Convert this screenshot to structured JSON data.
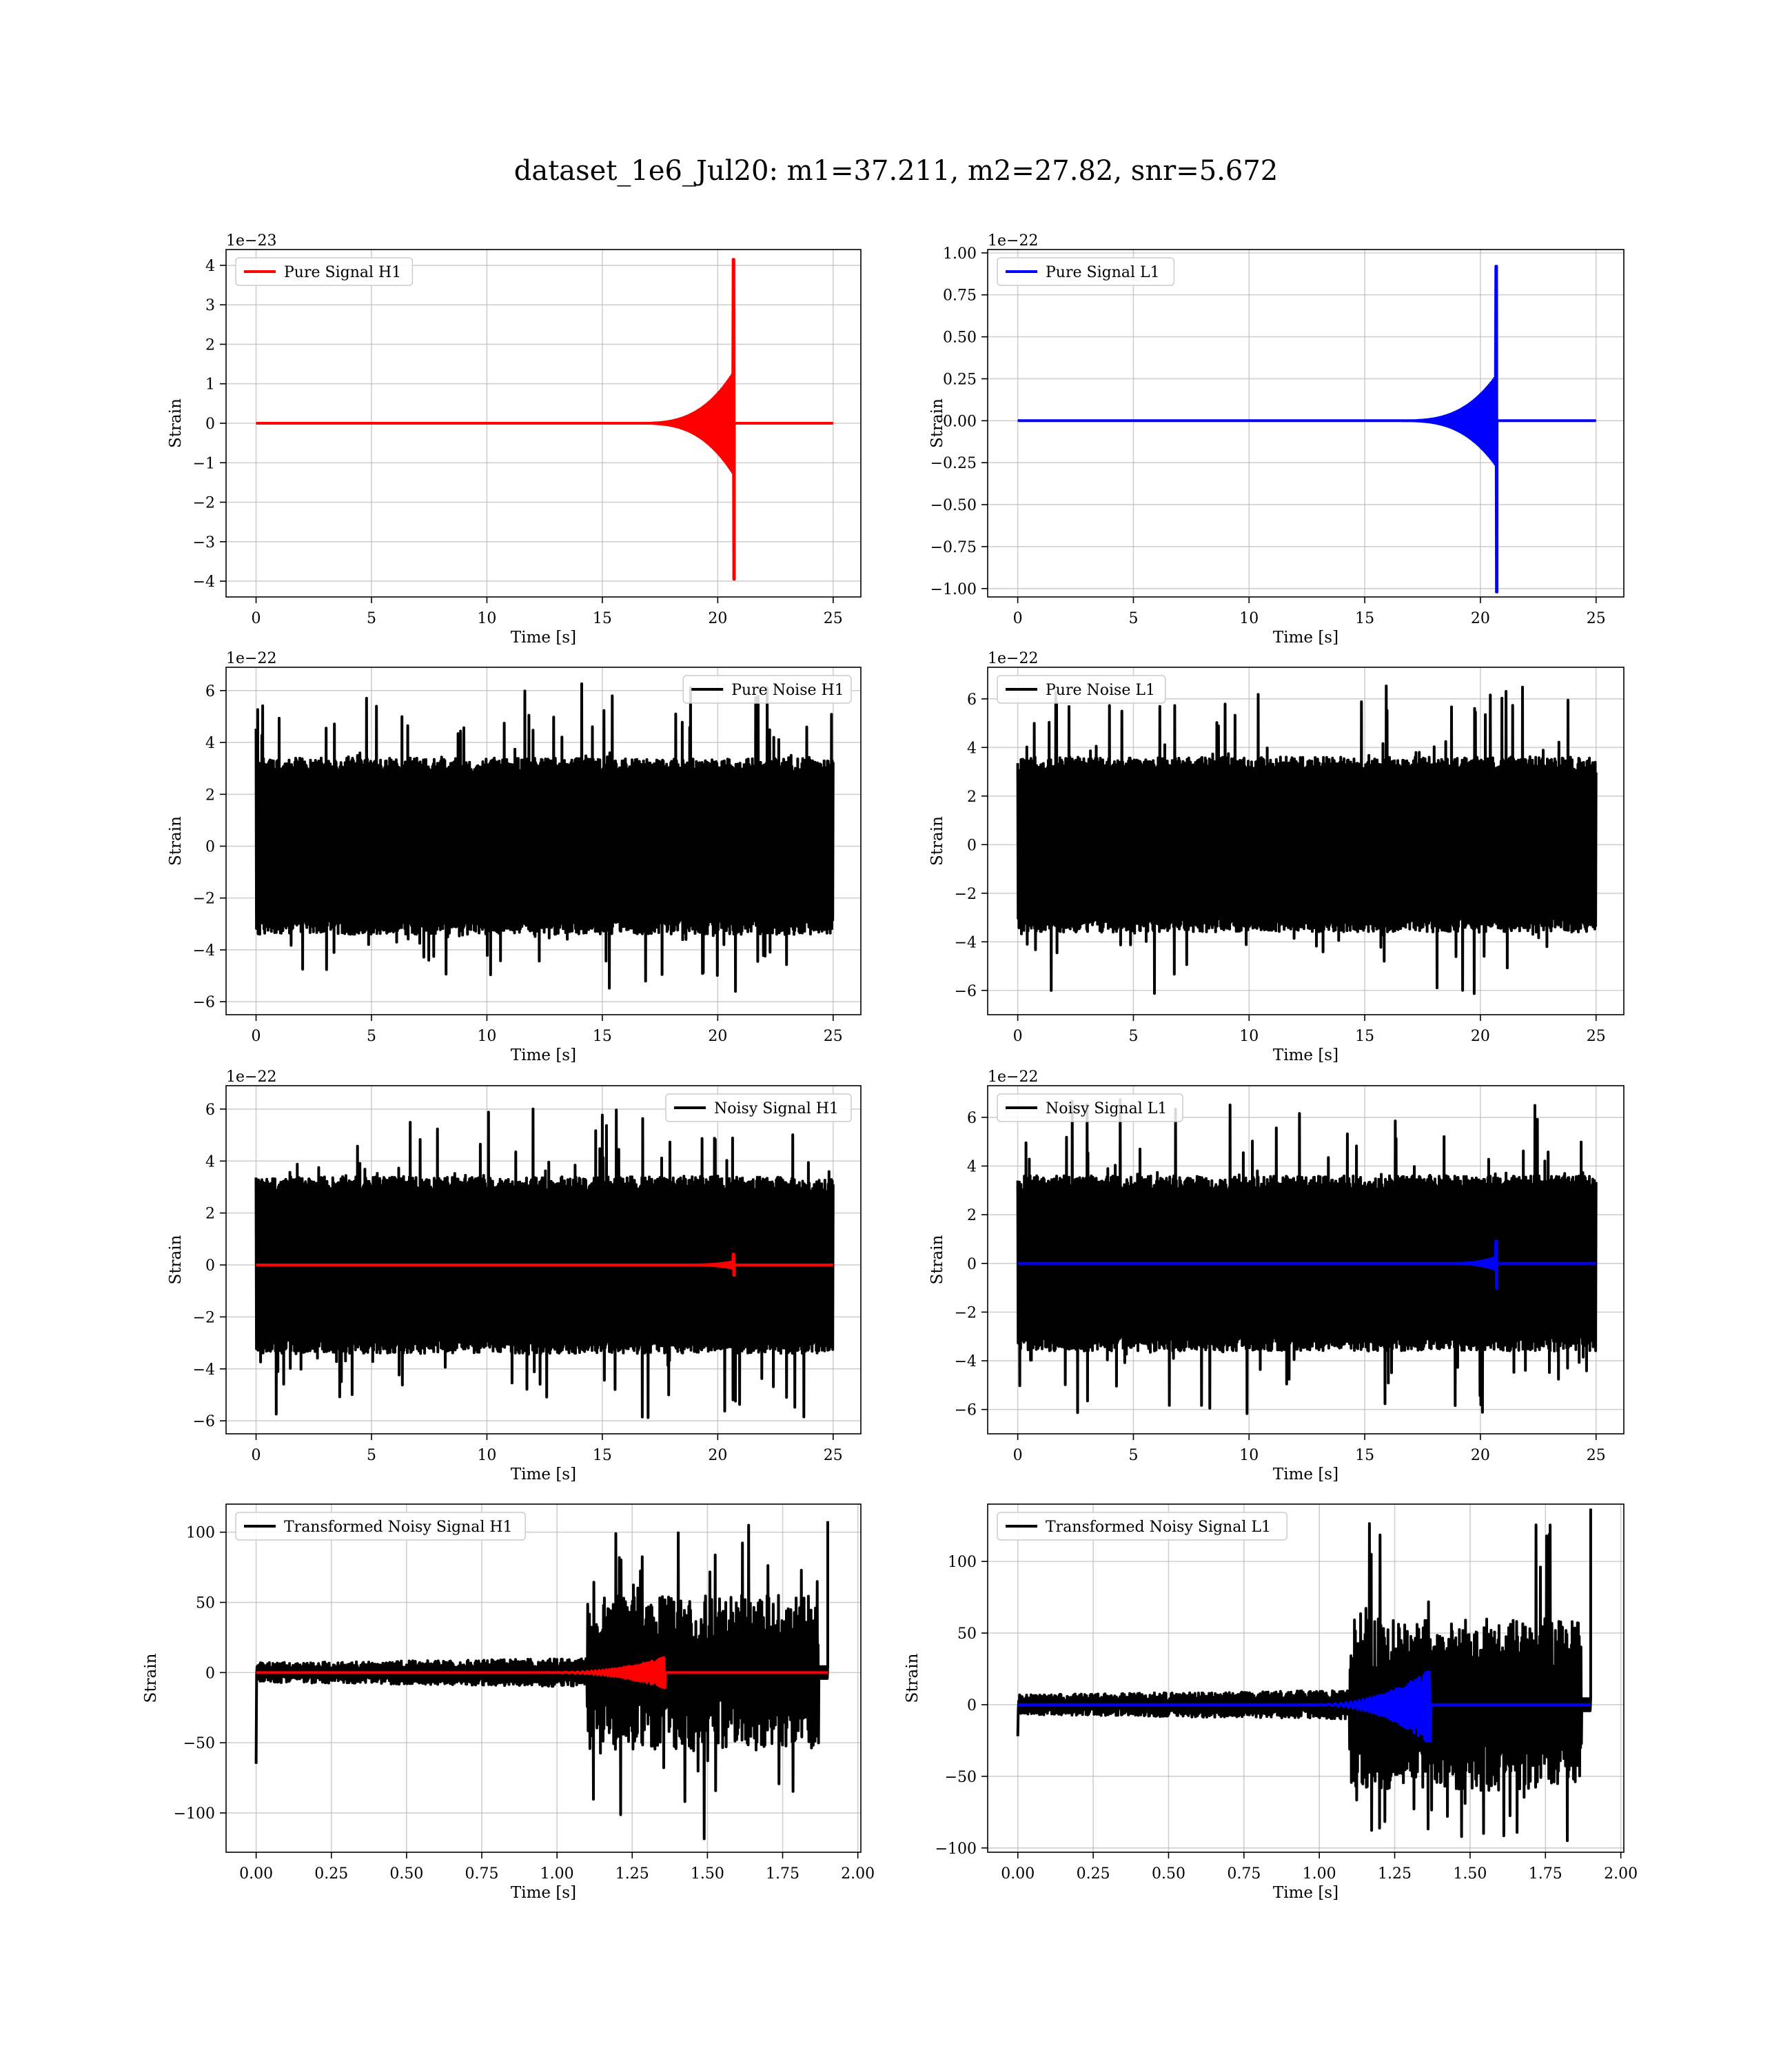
{
  "figure": {
    "title": "dataset_1e6_Jul20: m1=37.211, m2=27.82, snr=5.672"
  },
  "chart_data": [
    {
      "id": "pure-signal-h1",
      "type": "line",
      "legend": "upper left",
      "offset_label": "1e−23",
      "xlabel": "Time [s]",
      "ylabel": "Strain",
      "xlim": [
        -1.3,
        26.2
      ],
      "ylim": [
        -4.4,
        4.4
      ],
      "xticks": [
        0,
        5,
        10,
        15,
        20,
        25
      ],
      "xtick_labels": [
        "0",
        "5",
        "10",
        "15",
        "20",
        "25"
      ],
      "yticks": [
        -4,
        -3,
        -2,
        -1,
        0,
        1,
        2,
        3,
        4
      ],
      "ytick_labels": [
        "−4",
        "−3",
        "−2",
        "−1",
        "0",
        "1",
        "2",
        "3",
        "4"
      ],
      "grid": true,
      "series": [
        {
          "name": "Pure Signal H1",
          "color": "#ff0000",
          "kind": "chirp",
          "x_start": 0,
          "x_end": 25,
          "merger_x": 20.7,
          "peak_pos": 4.15,
          "peak_neg": -3.95,
          "inspiral_amp": 1.3,
          "onset_x": 16.5
        }
      ]
    },
    {
      "id": "pure-signal-l1",
      "type": "line",
      "legend": "upper left",
      "offset_label": "1e−22",
      "xlabel": "Time [s]",
      "ylabel": "Strain",
      "xlim": [
        -1.3,
        26.2
      ],
      "ylim": [
        -1.05,
        1.02
      ],
      "xticks": [
        0,
        5,
        10,
        15,
        20,
        25
      ],
      "xtick_labels": [
        "0",
        "5",
        "10",
        "15",
        "20",
        "25"
      ],
      "yticks": [
        -1.0,
        -0.75,
        -0.5,
        -0.25,
        0.0,
        0.25,
        0.5,
        0.75,
        1.0
      ],
      "ytick_labels": [
        "−1.00",
        "−0.75",
        "−0.50",
        "−0.25",
        "0.00",
        "0.25",
        "0.50",
        "0.75",
        "1.00"
      ],
      "grid": true,
      "series": [
        {
          "name": "Pure Signal L1",
          "color": "#0000ff",
          "kind": "chirp",
          "x_start": 0,
          "x_end": 25,
          "merger_x": 20.7,
          "peak_pos": 0.92,
          "peak_neg": -1.02,
          "inspiral_amp": 0.27,
          "onset_x": 16.5
        }
      ]
    },
    {
      "id": "pure-noise-h1",
      "type": "line",
      "legend": "upper right",
      "offset_label": "1e−22",
      "xlabel": "Time [s]",
      "ylabel": "Strain",
      "xlim": [
        -1.3,
        26.2
      ],
      "ylim": [
        -6.5,
        6.9
      ],
      "xticks": [
        0,
        5,
        10,
        15,
        20,
        25
      ],
      "xtick_labels": [
        "0",
        "5",
        "10",
        "15",
        "20",
        "25"
      ],
      "yticks": [
        -6,
        -4,
        -2,
        0,
        2,
        4,
        6
      ],
      "ytick_labels": [
        "−6",
        "−4",
        "−2",
        "0",
        "2",
        "4",
        "6"
      ],
      "grid": true,
      "series": [
        {
          "name": "Pure Noise H1",
          "color": "#000000",
          "kind": "noise",
          "x_start": 0,
          "x_end": 25,
          "band": 3.4,
          "spike_max": 6.4,
          "spike_min": -5.9
        }
      ]
    },
    {
      "id": "pure-noise-l1",
      "type": "line",
      "legend": "upper left",
      "offset_label": "1e−22",
      "xlabel": "Time [s]",
      "ylabel": "Strain",
      "xlim": [
        -1.3,
        26.2
      ],
      "ylim": [
        -7.0,
        7.3
      ],
      "xticks": [
        0,
        5,
        10,
        15,
        20,
        25
      ],
      "xtick_labels": [
        "0",
        "5",
        "10",
        "15",
        "20",
        "25"
      ],
      "yticks": [
        -6,
        -4,
        -2,
        0,
        2,
        4,
        6
      ],
      "ytick_labels": [
        "−6",
        "−4",
        "−2",
        "0",
        "2",
        "4",
        "6"
      ],
      "grid": true,
      "series": [
        {
          "name": "Pure Noise L1",
          "color": "#000000",
          "kind": "noise",
          "x_start": 0,
          "x_end": 25,
          "band": 3.6,
          "spike_max": 6.9,
          "spike_min": -6.3
        }
      ]
    },
    {
      "id": "noisy-signal-h1",
      "type": "line",
      "legend": "upper right",
      "offset_label": "1e−22",
      "xlabel": "Time [s]",
      "ylabel": "Strain",
      "xlim": [
        -1.3,
        26.2
      ],
      "ylim": [
        -6.5,
        6.9
      ],
      "xticks": [
        0,
        5,
        10,
        15,
        20,
        25
      ],
      "xtick_labels": [
        "0",
        "5",
        "10",
        "15",
        "20",
        "25"
      ],
      "yticks": [
        -6,
        -4,
        -2,
        0,
        2,
        4,
        6
      ],
      "ytick_labels": [
        "−6",
        "−4",
        "−2",
        "0",
        "2",
        "4",
        "6"
      ],
      "grid": true,
      "series": [
        {
          "name": "Noisy Signal H1",
          "color": "#000000",
          "kind": "noise",
          "x_start": 0,
          "x_end": 25,
          "band": 3.4,
          "spike_max": 6.4,
          "spike_min": -5.9
        },
        {
          "name": "",
          "color": "#ff0000",
          "kind": "chirp",
          "x_start": 0,
          "x_end": 25,
          "merger_x": 20.7,
          "peak_pos": 0.42,
          "peak_neg": -0.4,
          "inspiral_amp": 0.13,
          "onset_x": 18.5
        }
      ]
    },
    {
      "id": "noisy-signal-l1",
      "type": "line",
      "legend": "upper left",
      "offset_label": "1e−22",
      "xlabel": "Time [s]",
      "ylabel": "Strain",
      "xlim": [
        -1.3,
        26.2
      ],
      "ylim": [
        -7.0,
        7.3
      ],
      "xticks": [
        0,
        5,
        10,
        15,
        20,
        25
      ],
      "xtick_labels": [
        "0",
        "5",
        "10",
        "15",
        "20",
        "25"
      ],
      "yticks": [
        -6,
        -4,
        -2,
        0,
        2,
        4,
        6
      ],
      "ytick_labels": [
        "−6",
        "−4",
        "−2",
        "0",
        "2",
        "4",
        "6"
      ],
      "grid": true,
      "series": [
        {
          "name": "Noisy Signal L1",
          "color": "#000000",
          "kind": "noise",
          "x_start": 0,
          "x_end": 25,
          "band": 3.6,
          "spike_max": 6.9,
          "spike_min": -6.3
        },
        {
          "name": "",
          "color": "#0000ff",
          "kind": "chirp",
          "x_start": 0,
          "x_end": 25,
          "merger_x": 20.7,
          "peak_pos": 0.92,
          "peak_neg": -1.02,
          "inspiral_amp": 0.27,
          "onset_x": 18.5
        }
      ]
    },
    {
      "id": "transformed-noisy-signal-h1",
      "type": "line",
      "legend": "upper left",
      "offset_label": "",
      "xlabel": "Time [s]",
      "ylabel": "Strain",
      "xlim": [
        -0.1,
        2.01
      ],
      "ylim": [
        -128,
        120
      ],
      "xticks": [
        0.0,
        0.25,
        0.5,
        0.75,
        1.0,
        1.25,
        1.5,
        1.75,
        2.0
      ],
      "xtick_labels": [
        "0.00",
        "0.25",
        "0.50",
        "0.75",
        "1.00",
        "1.25",
        "1.50",
        "1.75",
        "2.00"
      ],
      "yticks": [
        -100,
        -50,
        0,
        50,
        100
      ],
      "ytick_labels": [
        "−100",
        "−50",
        "0",
        "50",
        "100"
      ],
      "grid": true,
      "series": [
        {
          "name": "Transformed Noisy Signal H1",
          "color": "#000000",
          "kind": "tnoise",
          "x_start": 0,
          "x_end": 1.9,
          "early_amp": 7,
          "step_x": 1.1,
          "late_amp": 55,
          "spike_max": 108,
          "spike_min": -121,
          "first_value": -65
        },
        {
          "name": "",
          "color": "#ff0000",
          "kind": "tchirp",
          "x_start": 0,
          "x_end": 1.9,
          "merger_x": 1.36,
          "peak_pos": 11,
          "peak_neg": -11,
          "onset_x": 0.95
        }
      ]
    },
    {
      "id": "transformed-noisy-signal-l1",
      "type": "line",
      "legend": "upper left",
      "offset_label": "",
      "xlabel": "Time [s]",
      "ylabel": "Strain",
      "xlim": [
        -0.1,
        2.01
      ],
      "ylim": [
        -103,
        140
      ],
      "xticks": [
        0.0,
        0.25,
        0.5,
        0.75,
        1.0,
        1.25,
        1.5,
        1.75,
        2.0
      ],
      "xtick_labels": [
        "0.00",
        "0.25",
        "0.50",
        "0.75",
        "1.00",
        "1.25",
        "1.50",
        "1.75",
        "2.00"
      ],
      "yticks": [
        -100,
        -50,
        0,
        50,
        100
      ],
      "ytick_labels": [
        "−100",
        "−50",
        "0",
        "50",
        "100"
      ],
      "grid": true,
      "series": [
        {
          "name": "Transformed Noisy Signal L1",
          "color": "#000000",
          "kind": "tnoise",
          "x_start": 0,
          "x_end": 1.9,
          "early_amp": 7,
          "step_x": 1.1,
          "late_amp": 60,
          "spike_max": 137,
          "spike_min": -95,
          "first_value": -22
        },
        {
          "name": "",
          "color": "#0000ff",
          "kind": "tchirp",
          "x_start": 0,
          "x_end": 1.9,
          "merger_x": 1.37,
          "peak_pos": 25,
          "peak_neg": -28,
          "onset_x": 0.95
        }
      ]
    }
  ]
}
